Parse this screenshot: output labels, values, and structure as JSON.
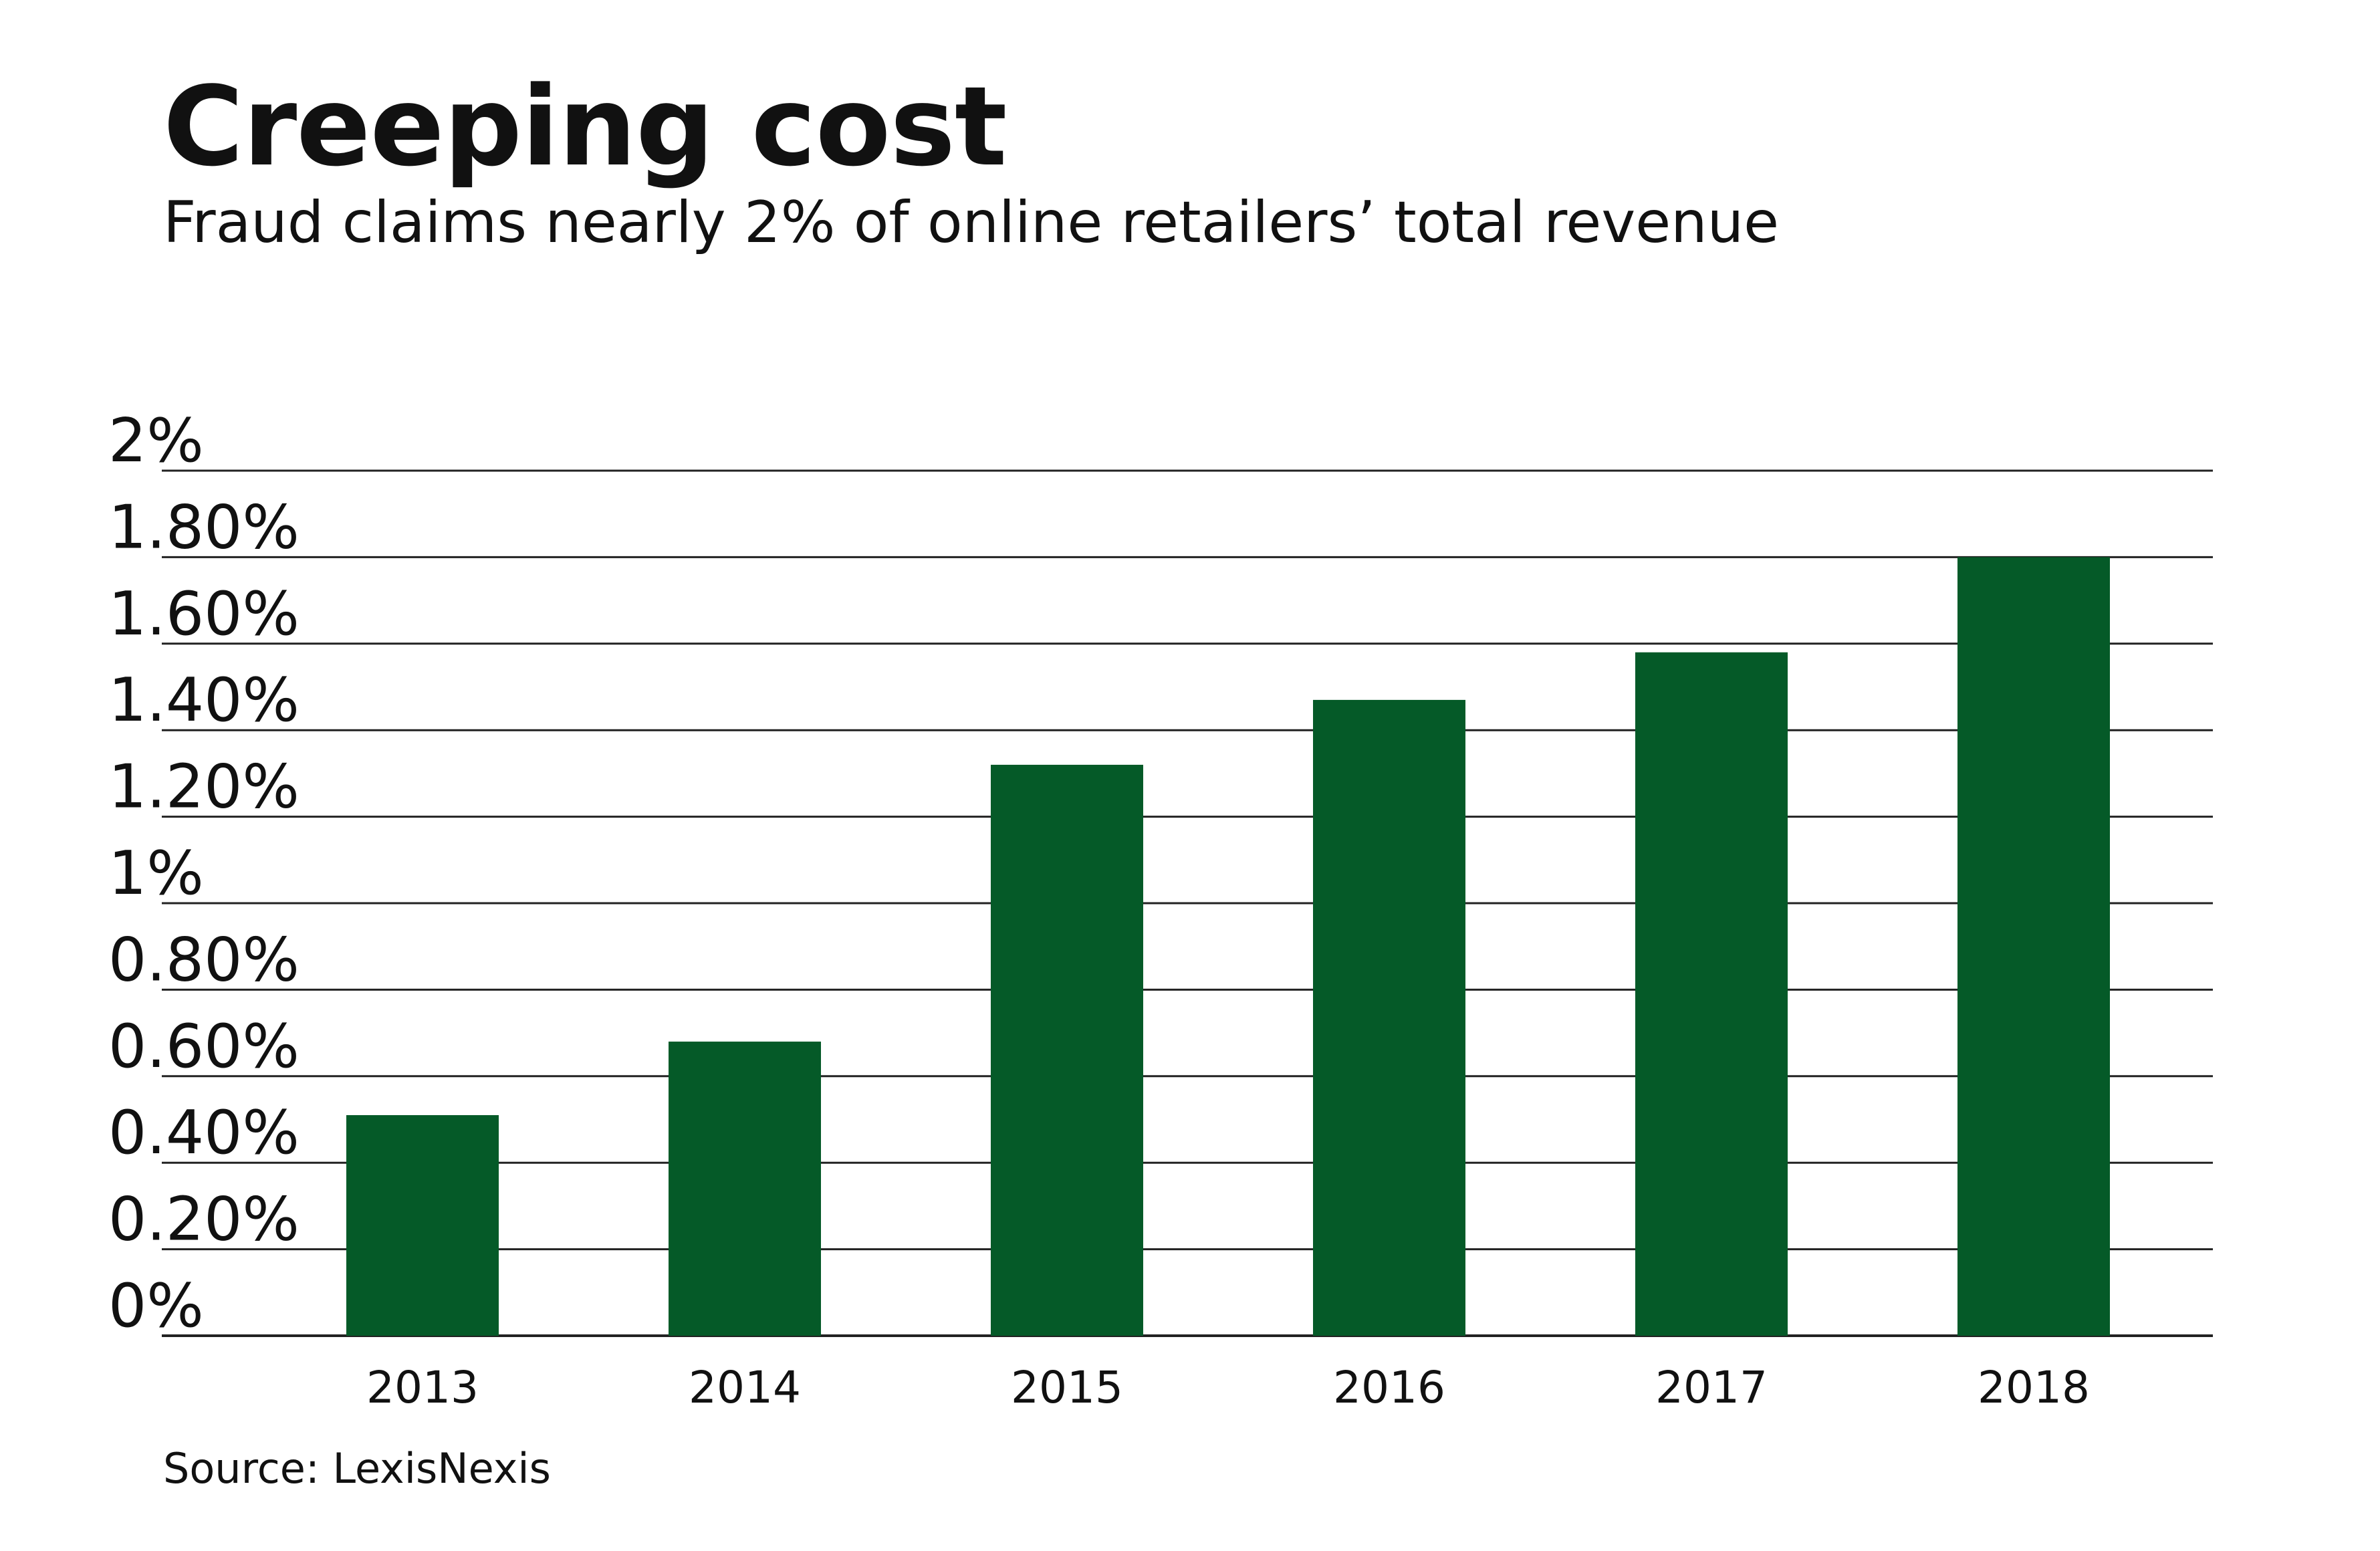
{
  "chart_data": {
    "type": "bar",
    "title": "Creeping cost",
    "subtitle": "Fraud claims nearly 2% of online retailers’ total revenue",
    "source": "Source: LexisNexis",
    "xlabel": "",
    "ylabel": "",
    "categories": [
      "2013",
      "2014",
      "2015",
      "2016",
      "2017",
      "2018"
    ],
    "values": [
      0.51,
      0.68,
      1.32,
      1.47,
      1.58,
      1.8
    ],
    "ylim": [
      0,
      2
    ],
    "yticks": [
      0,
      0.2,
      0.4,
      0.6,
      0.8,
      1.0,
      1.2,
      1.4,
      1.6,
      1.8,
      2.0
    ],
    "ytick_labels": [
      "0%",
      "0.20%",
      "0.40%",
      "0.60%",
      "0.80%",
      "1%",
      "1.20%",
      "1.40%",
      "1.60%",
      "1.80%",
      "2%"
    ],
    "grid": true,
    "legend": "none",
    "bar_color": "#055a28",
    "grid_color": "#222222"
  }
}
